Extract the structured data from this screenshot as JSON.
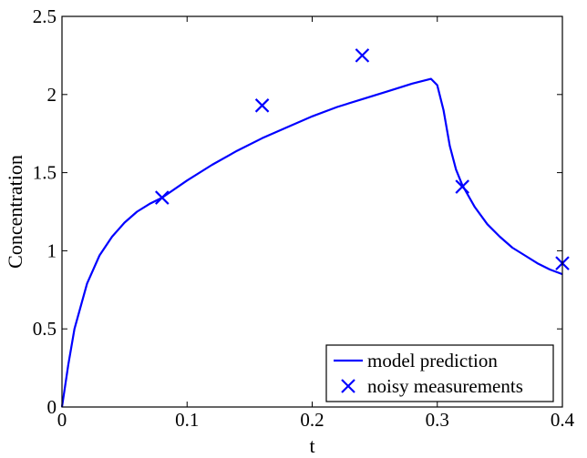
{
  "chart_data": {
    "type": "line",
    "title": "",
    "xlabel": "t",
    "ylabel": "Concentration",
    "xlim": [
      0,
      0.4
    ],
    "ylim": [
      0,
      2.5
    ],
    "xticks": [
      0,
      0.1,
      0.2,
      0.3,
      0.4
    ],
    "xtick_labels": [
      "0",
      "0.1",
      "0.2",
      "0.3",
      "0.4"
    ],
    "yticks": [
      0,
      0.5,
      1,
      1.5,
      2,
      2.5
    ],
    "ytick_labels": [
      "0",
      "0.5",
      "1",
      "1.5",
      "2",
      "2.5"
    ],
    "grid": false,
    "legend_position": "bottom-right",
    "series": [
      {
        "name": "model prediction",
        "style": "line",
        "color": "#0000ff",
        "x": [
          0,
          0.005,
          0.01,
          0.02,
          0.03,
          0.04,
          0.05,
          0.06,
          0.07,
          0.08,
          0.1,
          0.12,
          0.14,
          0.16,
          0.18,
          0.2,
          0.22,
          0.24,
          0.26,
          0.28,
          0.295,
          0.3,
          0.305,
          0.31,
          0.315,
          0.32,
          0.33,
          0.34,
          0.35,
          0.36,
          0.37,
          0.38,
          0.39,
          0.4
        ],
        "y": [
          0,
          0.27,
          0.5,
          0.79,
          0.97,
          1.09,
          1.18,
          1.25,
          1.3,
          1.34,
          1.45,
          1.55,
          1.64,
          1.72,
          1.79,
          1.86,
          1.92,
          1.97,
          2.02,
          2.07,
          2.1,
          2.06,
          1.9,
          1.67,
          1.52,
          1.42,
          1.28,
          1.17,
          1.09,
          1.02,
          0.97,
          0.92,
          0.88,
          0.85
        ]
      },
      {
        "name": "noisy measurements",
        "style": "marker-x",
        "color": "#0000ff",
        "x": [
          0.08,
          0.16,
          0.24,
          0.32,
          0.4
        ],
        "y": [
          1.34,
          1.93,
          2.25,
          1.41,
          0.92
        ]
      }
    ]
  }
}
